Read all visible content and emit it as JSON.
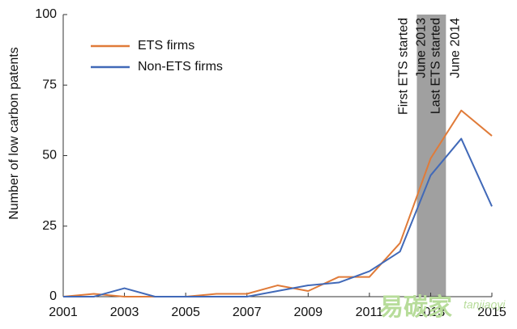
{
  "chart_data": {
    "type": "line",
    "y_label": "Number of low carbon patents",
    "x": [
      2001,
      2002,
      2003,
      2004,
      2005,
      2006,
      2007,
      2008,
      2009,
      2010,
      2011,
      2012,
      2013,
      2014,
      2015
    ],
    "series": [
      {
        "name": "ETS firms",
        "color": "#e07b39",
        "values": [
          0,
          1,
          0,
          0,
          0,
          1,
          1,
          4,
          2,
          7,
          7,
          19,
          49,
          66,
          57
        ]
      },
      {
        "name": "Non-ETS firms",
        "color": "#4169b8",
        "values": [
          0,
          0,
          3,
          0,
          0,
          0,
          0,
          2,
          4,
          5,
          9,
          16,
          43,
          56,
          32
        ]
      }
    ],
    "xlim": [
      2001,
      2015
    ],
    "xticks": [
      2001,
      2003,
      2005,
      2007,
      2009,
      2011,
      2013,
      2015
    ],
    "ylim": [
      0,
      100
    ],
    "yticks": [
      0,
      25,
      50,
      75,
      100
    ],
    "shaded_span": [
      2012.55,
      2013.5
    ],
    "shade_color": "#a0a0a0",
    "annotations": [
      "First ETS started",
      "June 2013",
      "Last ETS started",
      "June 2014"
    ],
    "legend": "upper left",
    "watermark": [
      "易碳家",
      "tanjiaoyi"
    ]
  }
}
